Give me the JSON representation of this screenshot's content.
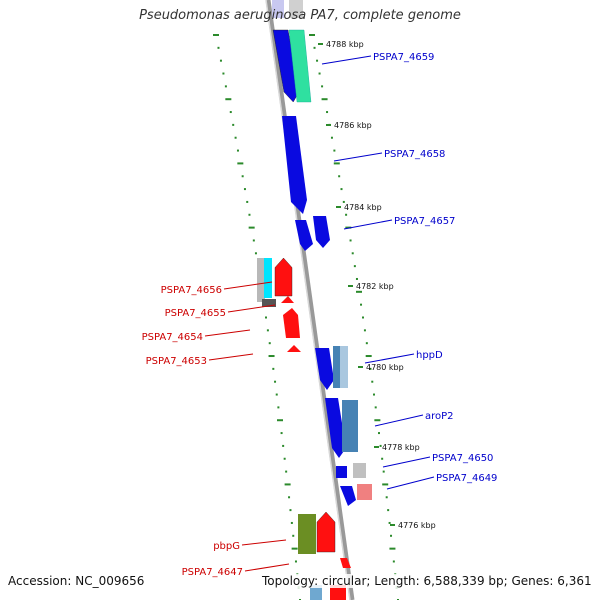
{
  "title": "Pseudomonas aeruginosa PA7, complete genome",
  "footer": {
    "accession": "Accession: NC_009656",
    "summary": "Topology: circular; Length: 6,588,339 bp; Genes: 6,361"
  },
  "colors": {
    "backbone": "#999999",
    "tick": "#2b8a2b",
    "forward_label": "#0000cc",
    "reverse_label": "#cc0000"
  },
  "scale_labels": [
    "4788 kbp",
    "4786 kbp",
    "4784 kbp",
    "4782 kbp",
    "4780 kbp",
    "4778 kbp",
    "4776 kbp"
  ],
  "genes": [
    {
      "label": "PSPA7_4659",
      "strand": "forward",
      "color": "#2fe0a0"
    },
    {
      "label": "PSPA7_4658",
      "strand": "forward",
      "color": "#0a0ae0"
    },
    {
      "label": "PSPA7_4657",
      "strand": "forward",
      "color": "#0a0ae0"
    },
    {
      "label": "PSPA7_4656",
      "strand": "reverse",
      "color": "#ff1010"
    },
    {
      "label": "PSPA7_4655",
      "strand": "reverse",
      "color": "#ff1010"
    },
    {
      "label": "PSPA7_4654",
      "strand": "reverse",
      "color": "#ff1010"
    },
    {
      "label": "PSPA7_4653",
      "strand": "reverse",
      "color": "#ff1010"
    },
    {
      "label": "hppD",
      "strand": "forward",
      "color": "#0a0ae0"
    },
    {
      "label": "aroP2",
      "strand": "forward",
      "color": "#4682b4"
    },
    {
      "label": "PSPA7_4650",
      "strand": "forward",
      "color": "#0a0ae0"
    },
    {
      "label": "PSPA7_4649",
      "strand": "forward",
      "color": "#0a0ae0"
    },
    {
      "label": "pbpG",
      "strand": "reverse",
      "color": "#6b8e23"
    },
    {
      "label": "PSPA7_4647",
      "strand": "reverse",
      "color": "#ff1010"
    }
  ]
}
